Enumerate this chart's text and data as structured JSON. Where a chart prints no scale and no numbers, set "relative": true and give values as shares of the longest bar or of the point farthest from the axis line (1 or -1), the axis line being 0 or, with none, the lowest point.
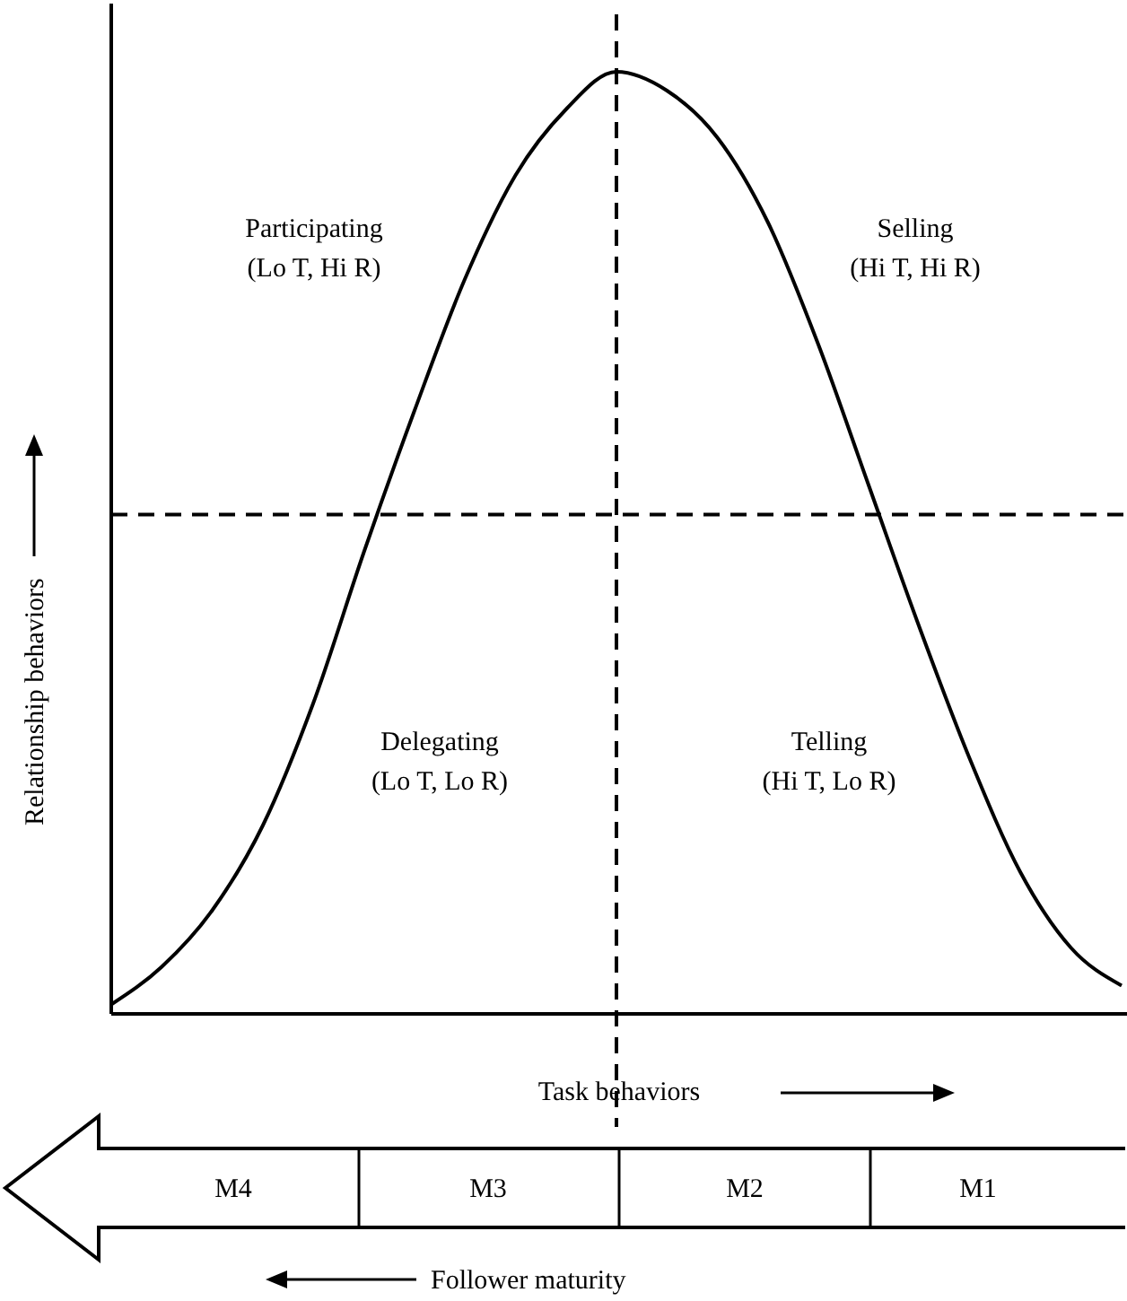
{
  "chart_data": {
    "type": "line",
    "relative": true,
    "xlabel": "Task behaviors",
    "ylabel": "Relationship behaviors",
    "categories": [
      null,
      null,
      null,
      null,
      null,
      null,
      null,
      null,
      null,
      null,
      null,
      null,
      null,
      null,
      null,
      null,
      null,
      null,
      null,
      null,
      null
    ],
    "series": [
      {
        "color": "#000000",
        "values": [
          0.01,
          0.05,
          0.11,
          0.2,
          0.33,
          0.49,
          0.64,
          0.78,
          0.89,
          0.96,
          1.0,
          0.98,
          0.93,
          0.84,
          0.71,
          0.56,
          0.41,
          0.27,
          0.15,
          0.07,
          0.03
        ]
      }
    ],
    "marker": "none",
    "line_style": "solid",
    "ref_lines": [
      {
        "axis": "y",
        "value": 0.53,
        "line_style": "dashed",
        "color": "#000000"
      }
    ],
    "annotations": [
      "Participating\n(Lo T, Hi R)",
      "Selling\n(Hi T, Hi R)",
      "Delegating\n(Lo T, Lo R)",
      "Telling\n(Hi T, Lo R)",
      "M4",
      "M3",
      "M2",
      "M1",
      "Follower maturity"
    ]
  }
}
